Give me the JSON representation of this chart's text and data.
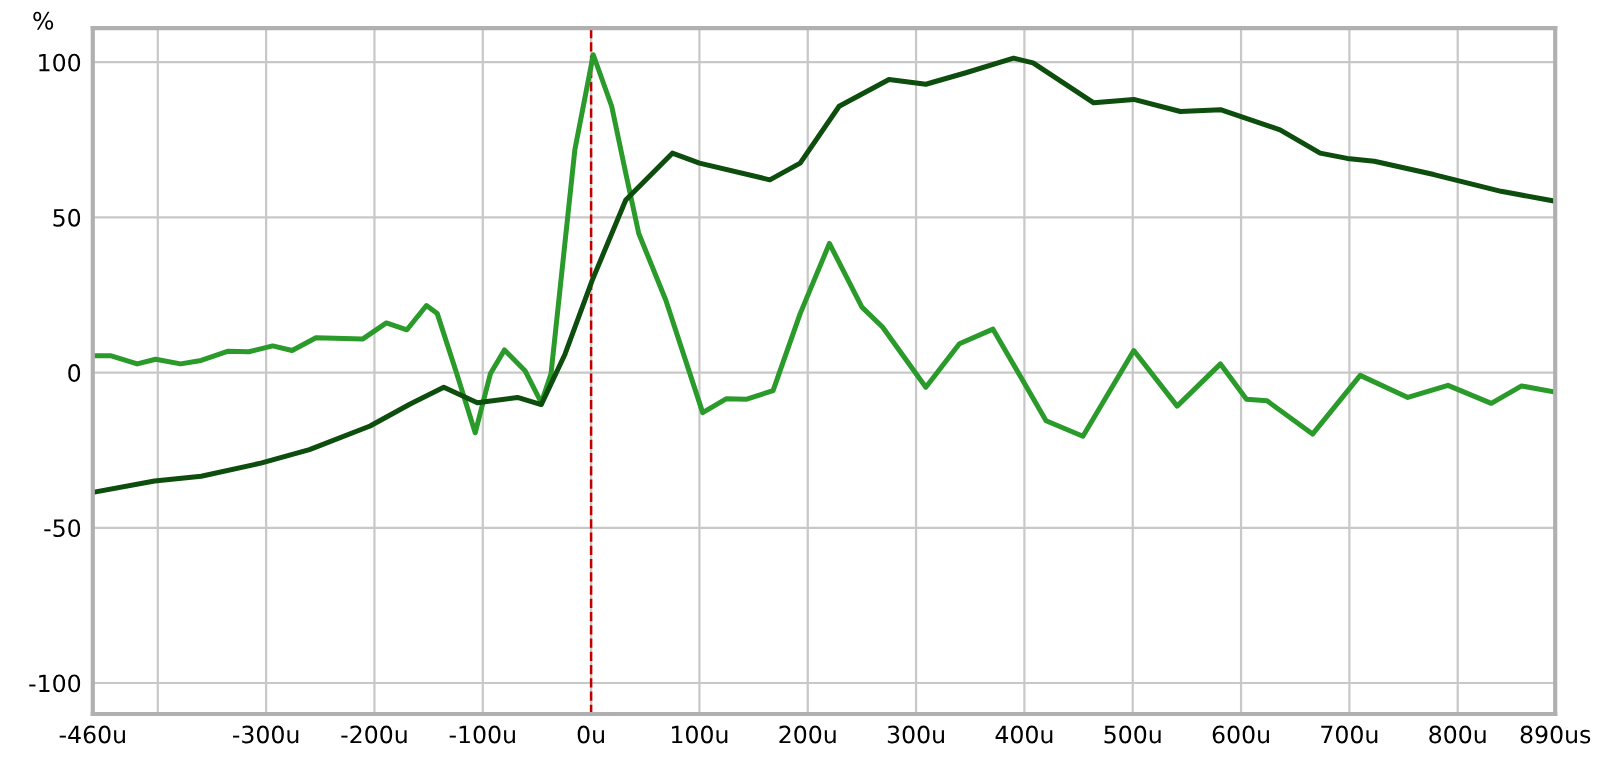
{
  "chart_data": {
    "type": "line",
    "ylabel": "%",
    "xlim": [
      -460,
      890
    ],
    "ylim": [
      -110,
      111
    ],
    "xticks": [
      {
        "value": -460,
        "label": "-460u"
      },
      {
        "value": -400,
        "label": null
      },
      {
        "value": -300,
        "label": "-300u"
      },
      {
        "value": -200,
        "label": "-200u"
      },
      {
        "value": -100,
        "label": "-100u"
      },
      {
        "value": 0,
        "label": "0u"
      },
      {
        "value": 100,
        "label": "100u"
      },
      {
        "value": 200,
        "label": "200u"
      },
      {
        "value": 300,
        "label": "300u"
      },
      {
        "value": 400,
        "label": "400u"
      },
      {
        "value": 500,
        "label": "500u"
      },
      {
        "value": 600,
        "label": "600u"
      },
      {
        "value": 700,
        "label": "700u"
      },
      {
        "value": 800,
        "label": "800u"
      },
      {
        "value": 890,
        "label": "890us"
      }
    ],
    "yticks": [
      100,
      50,
      0,
      -50,
      -100
    ],
    "grid": true,
    "line_style": "solid",
    "marker": "none",
    "ref_lines": [
      {
        "axis": "x",
        "value": 0,
        "color": "#c00000",
        "line_style": "dashed"
      }
    ],
    "series": [
      {
        "color": "#2a9a2a",
        "x": [
          -460,
          -443,
          -419,
          -402,
          -379,
          -360,
          -335,
          -316,
          -294,
          -276,
          -254,
          -211,
          -189,
          -170,
          -152,
          -142,
          -124,
          -107,
          -93,
          -80,
          -61,
          -46,
          -37,
          -15,
          2,
          19,
          32,
          44,
          69,
          103,
          125,
          143,
          168,
          193,
          220,
          250,
          269,
          309,
          340,
          371,
          420,
          454,
          501,
          541,
          581,
          605,
          624,
          666,
          710,
          754,
          791,
          831,
          859,
          890
        ],
        "values": [
          5.4,
          5.4,
          2.8,
          4.3,
          2.8,
          3.9,
          6.9,
          6.7,
          8.6,
          7.1,
          11.2,
          10.8,
          16,
          13.8,
          21.6,
          19,
          -0.4,
          -19.4,
          -0.4,
          7.3,
          0.6,
          -9.7,
          -0.4,
          71.8,
          102.4,
          85.8,
          64.2,
          44.8,
          23.3,
          -12.9,
          -8.4,
          -8.6,
          -5.8,
          19,
          41.6,
          21.1,
          14.7,
          -4.7,
          9.3,
          14,
          -15.5,
          -20.5,
          7.1,
          -10.8,
          2.8,
          -8.6,
          -9.1,
          -19.8,
          -0.9,
          -8,
          -4.1,
          -9.9,
          -4.3,
          -6.3
        ]
      },
      {
        "color": "#0d4d0d",
        "x": [
          -460,
          -403,
          -360,
          -304,
          -260,
          -204,
          -167,
          -136,
          -105,
          -68,
          -46,
          -24,
          1,
          32,
          75,
          100,
          165,
          193,
          229,
          275,
          309,
          346,
          390,
          408,
          464,
          501,
          544,
          581,
          636,
          673,
          698,
          723,
          778,
          840,
          890
        ],
        "values": [
          -38.6,
          -34.9,
          -33.4,
          -29.1,
          -24.8,
          -17.2,
          -10.1,
          -4.7,
          -9.7,
          -8,
          -10.3,
          6,
          29.7,
          55.6,
          70.7,
          67.5,
          62.1,
          67.5,
          85.8,
          94.4,
          92.9,
          96.6,
          101.3,
          99.8,
          86.9,
          88,
          84.1,
          84.7,
          78.2,
          70.7,
          69,
          68.1,
          63.8,
          58.4,
          55.2
        ]
      }
    ]
  }
}
